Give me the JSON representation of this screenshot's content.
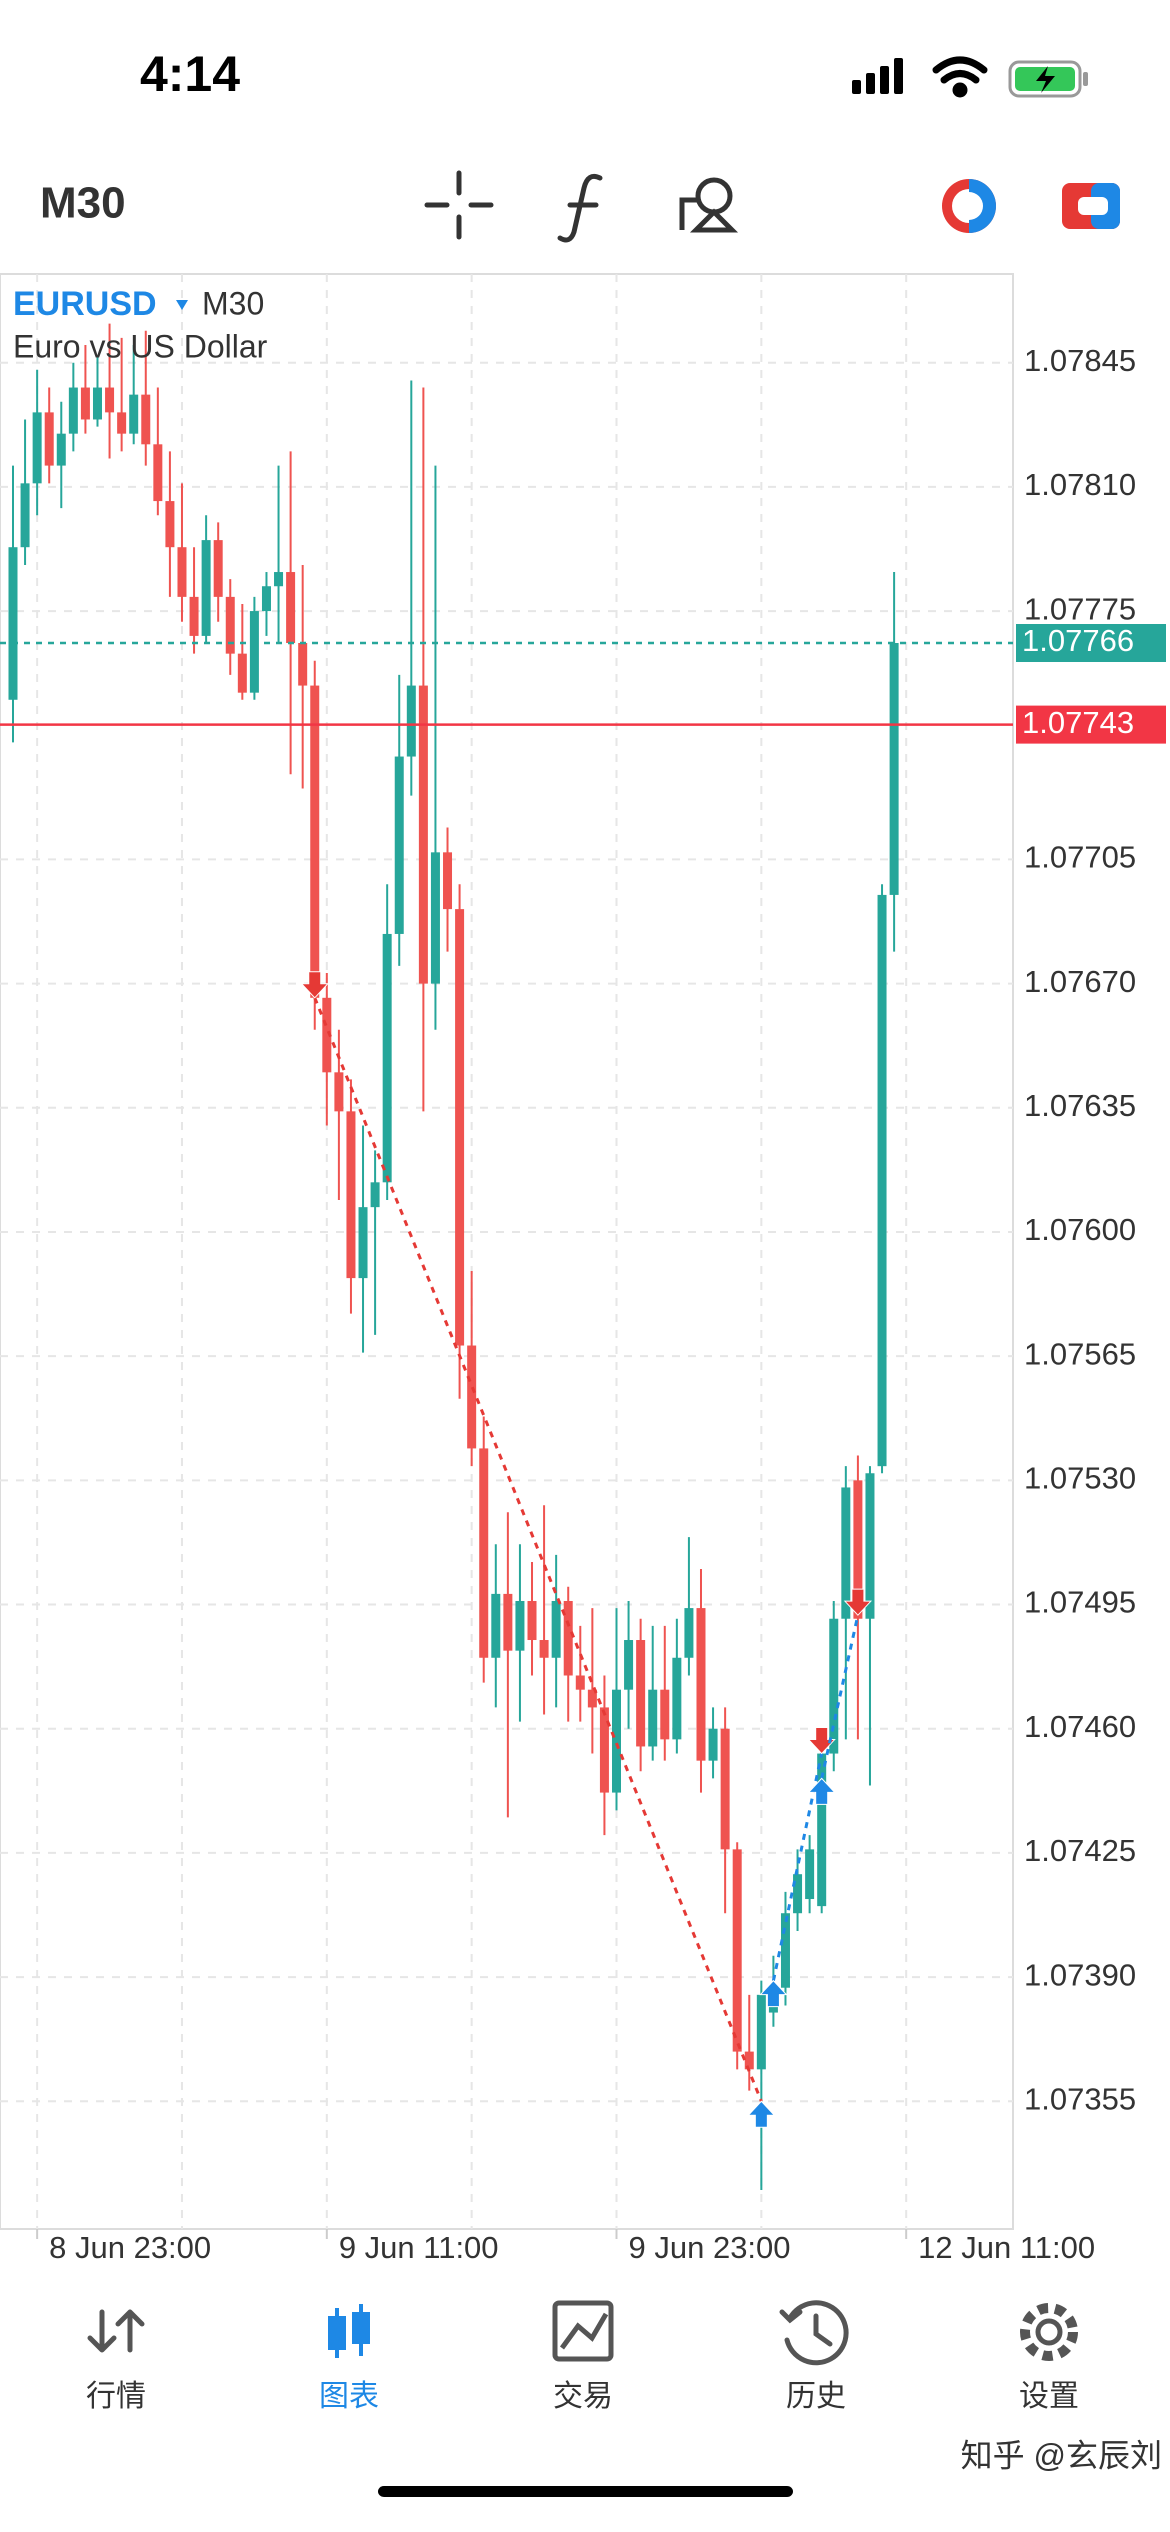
{
  "status_bar": {
    "time": "4:14"
  },
  "toolbar": {
    "timeframe": "M30"
  },
  "chart_data": {
    "type": "candlestick",
    "symbol": "EURUSD",
    "timeframe": "M30",
    "description": "Euro vs US Dollar",
    "categories": [
      null,
      null,
      "8 Jun 23:00",
      null,
      null,
      null,
      null,
      null,
      null,
      null,
      null,
      null,
      null,
      null,
      null,
      null,
      null,
      null,
      null,
      null,
      null,
      null,
      null,
      null,
      null,
      null,
      "9 Jun 11:00",
      null,
      null,
      null,
      null,
      null,
      null,
      null,
      null,
      null,
      null,
      null,
      null,
      null,
      null,
      null,
      null,
      null,
      null,
      null,
      null,
      null,
      null,
      null,
      "9 Jun 23:00",
      null,
      null,
      null,
      null,
      null,
      null,
      null,
      null,
      null,
      null,
      null,
      null,
      null,
      null,
      null,
      null,
      null,
      null,
      null,
      null,
      null,
      null,
      null,
      "12 Jun 11:00"
    ],
    "open": [
      1.0775,
      1.07793,
      1.07811,
      1.07831,
      1.07816,
      1.07825,
      1.07838,
      1.07829,
      1.07838,
      1.07831,
      1.07825,
      1.07836,
      1.07822,
      1.07806,
      1.07793,
      1.07779,
      1.07768,
      1.07795,
      1.07779,
      1.07763,
      1.07752,
      1.07775,
      1.07782,
      1.07786,
      1.07766,
      1.07754,
      1.07666,
      1.07645,
      1.07634,
      1.07587,
      1.07607,
      1.07614,
      1.07684,
      1.07734,
      1.07754,
      1.0767,
      1.07707,
      1.07691,
      1.07568,
      1.07539,
      1.0748,
      1.07498,
      1.07482,
      1.07496,
      1.07485,
      1.0748,
      1.07496,
      1.07475,
      1.07471,
      1.07466,
      1.07442,
      1.07471,
      1.07485,
      1.07455,
      1.07471,
      1.07457,
      1.0748,
      1.07494,
      1.07451,
      1.0746,
      1.07426,
      1.07369,
      1.07364,
      1.0738,
      1.07387,
      1.07408,
      1.07412,
      1.0741,
      1.07453,
      1.07491,
      1.0753,
      1.07491,
      1.07534,
      1.07695,
      null
    ],
    "high": [
      1.07816,
      1.07829,
      1.07843,
      1.07838,
      1.07834,
      1.07845,
      1.0785,
      1.07847,
      1.07856,
      1.07852,
      1.0785,
      1.07854,
      1.07838,
      1.0782,
      1.07811,
      1.07793,
      1.07802,
      1.078,
      1.07784,
      1.07777,
      1.07779,
      1.07786,
      1.07816,
      1.0782,
      1.07788,
      1.07761,
      1.07673,
      1.07657,
      1.07643,
      1.0763,
      1.07623,
      1.07698,
      1.07757,
      1.0784,
      1.07838,
      1.07816,
      1.07714,
      1.07698,
      1.07589,
      1.07548,
      1.07512,
      1.07521,
      1.07512,
      1.07507,
      1.07523,
      1.07509,
      1.075,
      1.07489,
      1.07494,
      1.07475,
      1.07494,
      1.07496,
      1.07491,
      1.07489,
      1.07489,
      1.07491,
      1.07514,
      1.07505,
      1.07466,
      1.07466,
      1.07428,
      1.07385,
      1.07389,
      1.07396,
      1.07414,
      1.07426,
      1.0743,
      1.07457,
      1.07496,
      1.07534,
      1.07537,
      1.07534,
      1.07698,
      1.07786,
      null
    ],
    "low": [
      1.07738,
      1.07788,
      1.07802,
      1.07811,
      1.07804,
      1.0782,
      1.07825,
      1.07827,
      1.07818,
      1.0782,
      1.07822,
      1.07816,
      1.07802,
      1.07779,
      1.07772,
      1.07763,
      1.07766,
      1.07772,
      1.07757,
      1.0775,
      1.0775,
      1.07768,
      1.07766,
      1.07729,
      1.07725,
      1.07657,
      1.0763,
      1.07609,
      1.07577,
      1.07566,
      1.07571,
      1.07609,
      1.07675,
      1.07723,
      1.07634,
      1.07657,
      1.07679,
      1.07553,
      1.07534,
      1.07473,
      1.07466,
      1.07435,
      1.07462,
      1.07475,
      1.07464,
      1.07466,
      1.07462,
      1.07462,
      1.07453,
      1.0743,
      1.07437,
      1.0746,
      1.07448,
      1.07451,
      1.07451,
      1.07453,
      1.07475,
      1.07442,
      1.07446,
      1.07408,
      1.07364,
      1.07358,
      1.0733,
      1.07376,
      1.07382,
      1.07403,
      1.07408,
      1.07408,
      1.07448,
      1.07457,
      1.07457,
      1.07444,
      1.07532,
      1.07679,
      null
    ],
    "close": [
      1.07793,
      1.07811,
      1.07831,
      1.07816,
      1.07825,
      1.07838,
      1.07829,
      1.07838,
      1.07831,
      1.07825,
      1.07836,
      1.07822,
      1.07806,
      1.07793,
      1.07779,
      1.07768,
      1.07795,
      1.07779,
      1.07763,
      1.07752,
      1.07775,
      1.07782,
      1.07786,
      1.07766,
      1.07754,
      1.07666,
      1.07645,
      1.07634,
      1.07587,
      1.07607,
      1.07614,
      1.07684,
      1.07734,
      1.07754,
      1.0767,
      1.07707,
      1.07691,
      1.07568,
      1.07539,
      1.0748,
      1.07498,
      1.07482,
      1.07496,
      1.07485,
      1.0748,
      1.07496,
      1.07475,
      1.07471,
      1.07466,
      1.07442,
      1.07471,
      1.07485,
      1.07455,
      1.07471,
      1.07457,
      1.0748,
      1.07494,
      1.07451,
      1.0746,
      1.07426,
      1.07369,
      1.07364,
      1.07385,
      1.07387,
      1.07408,
      1.07419,
      1.07426,
      1.07453,
      1.07491,
      1.07528,
      1.07491,
      1.07532,
      1.07695,
      1.07766,
      null
    ],
    "up_color": "#26a69a",
    "down_color": "#ef5350",
    "ylim": [
      1.07319,
      1.0787
    ],
    "yticks": [
      1.07845,
      {
        "value": 1.0781,
        "label": "1.07810"
      },
      1.07775,
      1.07705,
      {
        "value": 1.0767,
        "label": "1.07670"
      },
      1.07635,
      {
        "value": 1.076,
        "label": "1.07600"
      },
      1.07565,
      {
        "value": 1.0753,
        "label": "1.07530"
      },
      1.07495,
      {
        "value": 1.0746,
        "label": "1.07460"
      },
      1.07425,
      {
        "value": 1.0739,
        "label": "1.07390"
      },
      1.07355
    ],
    "grid": true,
    "price_lines": [
      {
        "value": 1.07766,
        "color": "#26a69a",
        "style": "dashed"
      },
      {
        "value": 1.07743,
        "color": "#f23645",
        "style": "solid"
      }
    ],
    "trades": [
      {
        "side": "sell",
        "open_bar": 25,
        "open_price": 1.07666,
        "close_bar": 62,
        "close_price": 1.07355
      },
      {
        "side": "buy",
        "open_bar": 63,
        "open_price": 1.07389,
        "close_bar": 67,
        "close_price": 1.07453
      },
      {
        "side": "buy",
        "open_bar": 67,
        "open_price": 1.07446,
        "close_bar": 70,
        "close_price": 1.07492
      }
    ]
  },
  "tab_bar": {
    "tabs": [
      {
        "label": "行情"
      },
      {
        "label": "图表"
      },
      {
        "label": "交易"
      },
      {
        "label": "历史"
      },
      {
        "label": "设置"
      }
    ],
    "active": 1
  },
  "watermark": "知乎 @玄辰刘"
}
